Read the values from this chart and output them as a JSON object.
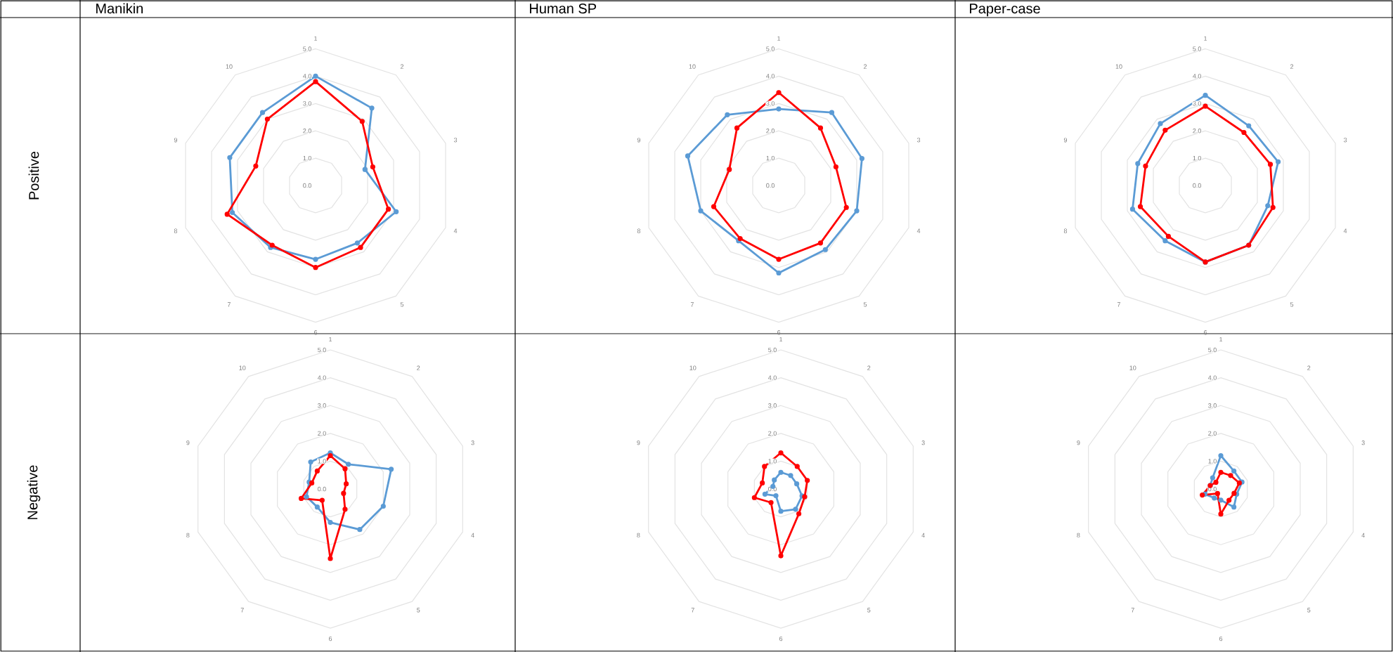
{
  "chart_data": [
    {
      "type": "radar",
      "title": "Manikin",
      "ylabel": "Positive",
      "categories": [
        "1",
        "2",
        "3",
        "4",
        "5",
        "6",
        "7",
        "8",
        "9",
        "10"
      ],
      "ylim": [
        0,
        5
      ],
      "yticks": [
        {
          "value": 0,
          "label": "0.0"
        },
        {
          "value": 1,
          "label": "1.0"
        },
        {
          "value": 2,
          "label": "2.0"
        },
        {
          "value": 3,
          "label": "3.0"
        },
        {
          "value": 4,
          "label": "4.0"
        },
        {
          "value": 5,
          "label": "5.0"
        }
      ],
      "grid": true,
      "marker": "circle",
      "line_style": "solid",
      "series": [
        {
          "color": "#5b9bd5",
          "values": [
            4.0,
            3.5,
            1.9,
            3.1,
            2.6,
            2.7,
            2.8,
            3.2,
            3.3,
            3.3
          ]
        },
        {
          "color": "#ff0000",
          "values": [
            3.8,
            2.9,
            2.2,
            2.8,
            2.8,
            3.0,
            2.7,
            3.4,
            2.3,
            3.0
          ]
        }
      ]
    },
    {
      "type": "radar",
      "title": "Human SP",
      "categories": [
        "1",
        "2",
        "3",
        "4",
        "5",
        "6",
        "7",
        "8",
        "9",
        "10"
      ],
      "ylim": [
        0,
        5
      ],
      "yticks": [
        {
          "value": 0,
          "label": "0.0"
        },
        {
          "value": 1,
          "label": "1.0"
        },
        {
          "value": 2,
          "label": "2.0"
        },
        {
          "value": 3,
          "label": "3.0"
        },
        {
          "value": 4,
          "label": "4.0"
        },
        {
          "value": 5,
          "label": "5.0"
        }
      ],
      "grid": true,
      "marker": "circle",
      "line_style": "solid",
      "series": [
        {
          "color": "#5b9bd5",
          "values": [
            2.8,
            3.3,
            3.2,
            3.0,
            2.9,
            3.2,
            2.5,
            3.0,
            3.5,
            3.2
          ]
        },
        {
          "color": "#ff0000",
          "values": [
            3.4,
            2.6,
            2.2,
            2.6,
            2.6,
            2.7,
            2.4,
            2.5,
            1.9,
            2.6
          ]
        }
      ]
    },
    {
      "type": "radar",
      "title": "Paper-case",
      "categories": [
        "1",
        "2",
        "3",
        "4",
        "5",
        "6",
        "7",
        "8",
        "9",
        "10"
      ],
      "ylim": [
        0,
        5
      ],
      "yticks": [
        {
          "value": 0,
          "label": "0.0"
        },
        {
          "value": 1,
          "label": "1.0"
        },
        {
          "value": 2,
          "label": "2.0"
        },
        {
          "value": 3,
          "label": "3.0"
        },
        {
          "value": 4,
          "label": "4.0"
        },
        {
          "value": 5,
          "label": "5.0"
        }
      ],
      "grid": true,
      "marker": "circle",
      "line_style": "solid",
      "series": [
        {
          "color": "#5b9bd5",
          "values": [
            3.3,
            2.7,
            2.8,
            2.4,
            2.7,
            2.8,
            2.5,
            2.8,
            2.6,
            2.8
          ]
        },
        {
          "color": "#ff0000",
          "values": [
            2.9,
            2.4,
            2.5,
            2.6,
            2.7,
            2.8,
            2.3,
            2.5,
            2.3,
            2.5
          ]
        }
      ]
    },
    {
      "type": "radar",
      "ylabel": "Negative",
      "categories": [
        "1",
        "2",
        "3",
        "4",
        "5",
        "6",
        "7",
        "8",
        "9",
        "10"
      ],
      "ylim": [
        0,
        5
      ],
      "yticks": [
        {
          "value": 0,
          "label": "0.0"
        },
        {
          "value": 1,
          "label": "1.0"
        },
        {
          "value": 2,
          "label": "2.0"
        },
        {
          "value": 3,
          "label": "3.0"
        },
        {
          "value": 4,
          "label": "4.0"
        },
        {
          "value": 5,
          "label": "5.0"
        }
      ],
      "grid": true,
      "marker": "circle",
      "line_style": "solid",
      "series": [
        {
          "color": "#5b9bd5",
          "values": [
            1.3,
            1.1,
            2.3,
            2.0,
            1.8,
            1.2,
            0.8,
            0.9,
            0.8,
            1.2
          ]
        },
        {
          "color": "#ff0000",
          "values": [
            1.2,
            0.9,
            0.6,
            0.5,
            0.9,
            2.5,
            0.5,
            1.1,
            0.7,
            0.8
          ]
        }
      ]
    },
    {
      "type": "radar",
      "categories": [
        "1",
        "2",
        "3",
        "4",
        "5",
        "6",
        "7",
        "8",
        "9",
        "10"
      ],
      "ylim": [
        0,
        5
      ],
      "yticks": [
        {
          "value": 0,
          "label": "0.0"
        },
        {
          "value": 1,
          "label": "1.0"
        },
        {
          "value": 2,
          "label": "2.0"
        },
        {
          "value": 3,
          "label": "3.0"
        },
        {
          "value": 4,
          "label": "4.0"
        },
        {
          "value": 5,
          "label": "5.0"
        }
      ],
      "grid": true,
      "marker": "circle",
      "line_style": "solid",
      "series": [
        {
          "color": "#5b9bd5",
          "values": [
            0.6,
            0.6,
            0.6,
            0.8,
            0.9,
            0.8,
            0.3,
            0.6,
            0.3,
            0.4
          ]
        },
        {
          "color": "#ff0000",
          "values": [
            1.3,
            1.0,
            1.0,
            0.9,
            1.1,
            2.4,
            0.6,
            1.0,
            0.7,
            1.0
          ]
        }
      ]
    },
    {
      "type": "radar",
      "categories": [
        "1",
        "2",
        "3",
        "4",
        "5",
        "6",
        "7",
        "8",
        "9",
        "10"
      ],
      "ylim": [
        0,
        5
      ],
      "yticks": [
        {
          "value": 0,
          "label": "0.0"
        },
        {
          "value": 1,
          "label": "1.0"
        },
        {
          "value": 2,
          "label": "2.0"
        },
        {
          "value": 3,
          "label": "3.0"
        },
        {
          "value": 4,
          "label": "4.0"
        },
        {
          "value": 5,
          "label": "5.0"
        }
      ],
      "grid": true,
      "marker": "circle",
      "line_style": "solid",
      "series": [
        {
          "color": "#5b9bd5",
          "values": [
            1.2,
            0.8,
            0.8,
            0.6,
            0.8,
            0.4,
            0.4,
            0.6,
            0.4,
            0.5
          ]
        },
        {
          "color": "#ff0000",
          "values": [
            0.6,
            0.6,
            0.7,
            0.5,
            0.5,
            0.9,
            0.2,
            0.7,
            0.4,
            0.3
          ]
        }
      ]
    }
  ]
}
